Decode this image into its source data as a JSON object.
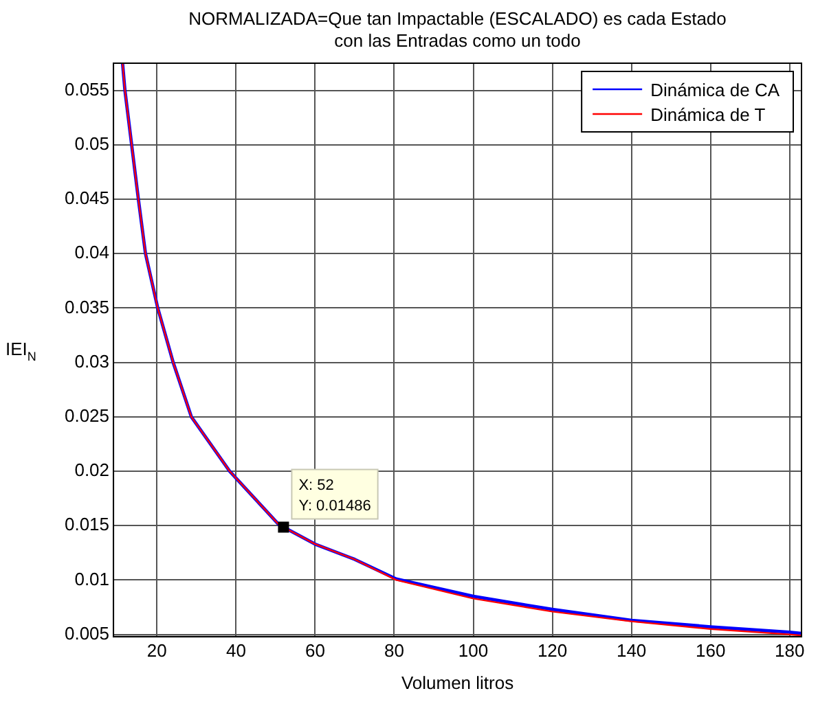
{
  "chart_data": {
    "type": "line",
    "title": "NORMALIZADA=Que tan Impactable (ESCALADO) es cada Estado\ncon las Entradas como un todo",
    "xlabel": "Volumen litros",
    "ylabel": "IEI$_{N}$",
    "x": [
      11.3,
      11.9,
      13.6,
      15.3,
      17.1,
      20.2,
      24.1,
      28.7,
      38.4,
      50.8,
      52,
      60,
      70,
      80.5,
      100,
      120,
      140,
      160,
      180,
      183
    ],
    "series": [
      {
        "name": "Dinámica de CA",
        "color": "#0000ff",
        "values": [
          0.0575,
          0.055,
          0.05,
          0.045,
          0.04,
          0.035,
          0.03,
          0.025,
          0.02,
          0.0151,
          0.01486,
          0.0133,
          0.0119,
          0.0101,
          0.0085,
          0.0073,
          0.0063,
          0.0057,
          0.0052,
          0.0051
        ]
      },
      {
        "name": "Dinámica de T",
        "color": "#ff0000",
        "values": [
          0.0575,
          0.055,
          0.05,
          0.045,
          0.04,
          0.035,
          0.03,
          0.025,
          0.02,
          0.0151,
          0.01486,
          0.0133,
          0.0119,
          0.01,
          0.0083,
          0.0071,
          0.0062,
          0.0055,
          0.005,
          0.0049
        ]
      }
    ],
    "xlim": [
      9,
      183
    ],
    "xticks": [
      20,
      40,
      60,
      80,
      100,
      120,
      140,
      160,
      180
    ],
    "ylim": [
      0.0048,
      0.0575
    ],
    "yticks": [
      0.005,
      0.01,
      0.015,
      0.02,
      0.025,
      0.03,
      0.035,
      0.04,
      0.045,
      0.05,
      0.055
    ],
    "grid": true,
    "legend": "top right",
    "marker": "none",
    "line_style": "solid",
    "annotations": [
      {
        "text": "X: 52\nY: 0.01486",
        "x": 52,
        "y": 0.01486
      }
    ]
  }
}
